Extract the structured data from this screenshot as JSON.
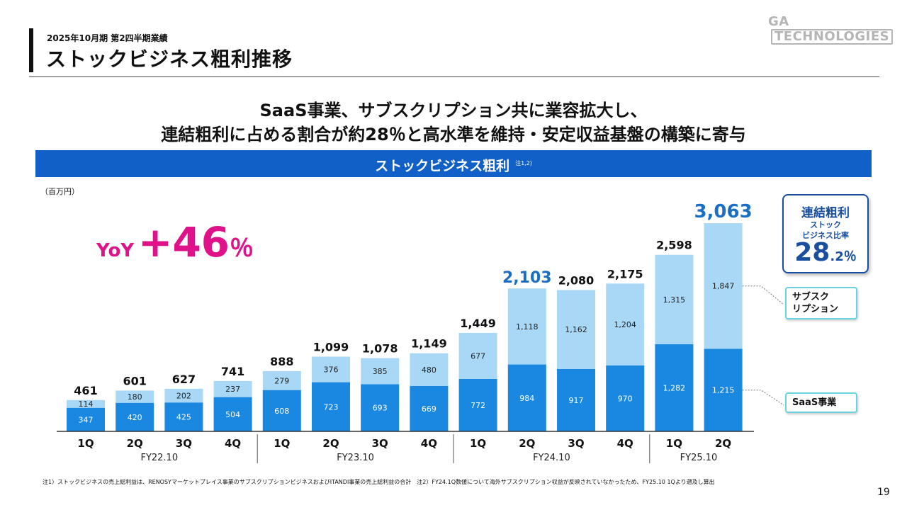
{
  "header": {
    "period": "2025年10月期 第2四半期業績",
    "title": "ストックビジネス粗利推移",
    "logo_a": "GA",
    "logo_b": "TECHNOLOGIES"
  },
  "headline": {
    "line1": "SaaS事業、サブスクリプション共に業容拡大し、",
    "line2": "連結粗利に占める割合が約28％と高水準を維持・安定収益基盤の構築に寄与"
  },
  "band": {
    "title": "ストックビジネス粗利",
    "note": "注1,2)"
  },
  "unit": "（百万円）",
  "yoy": {
    "prefix": "YoY",
    "value": "+46",
    "suffix": "％"
  },
  "callout": {
    "line1": "連結粗利",
    "line2": "ストック",
    "line3": "ビジネス比率",
    "value_int": "28",
    "value_dec": ".2％"
  },
  "legend": {
    "subscription": "サブスク\nリプション",
    "saas": "SaaS事業"
  },
  "footnote": "注1）ストックビジネスの売上総利益は、RENOSYマーケットプレイス事業のサブスクリプションビジネスおよびITANDI事業の売上総利益の合計　注2）FY24.1Q数値について海外サブスクリプション収益が反映されていなかったため、FY25.10 1Qより遡及し算出",
  "page_number": "19",
  "colors": {
    "saas": "#1a88e0",
    "subscription": "#a8d8f6",
    "highlight_total": "#1a6fc4",
    "band": "#1060c8",
    "yoy": "#e0128a"
  },
  "chart_data": {
    "type": "bar",
    "stacked": true,
    "categories": [
      "1Q",
      "2Q",
      "3Q",
      "4Q",
      "1Q",
      "2Q",
      "3Q",
      "4Q",
      "1Q",
      "2Q",
      "3Q",
      "4Q",
      "1Q",
      "2Q"
    ],
    "groups": [
      {
        "label": "FY22.10",
        "count": 4
      },
      {
        "label": "FY23.10",
        "count": 4
      },
      {
        "label": "FY24.10",
        "count": 4
      },
      {
        "label": "FY25.10",
        "count": 2
      }
    ],
    "series": [
      {
        "name": "SaaS事業",
        "values": [
          347,
          420,
          425,
          504,
          608,
          723,
          693,
          669,
          772,
          984,
          917,
          970,
          1282,
          1215
        ]
      },
      {
        "name": "サブスクリプション",
        "values": [
          114,
          180,
          202,
          237,
          279,
          376,
          385,
          480,
          677,
          1118,
          1162,
          1204,
          1315,
          1847
        ]
      }
    ],
    "totals": [
      "461",
      "601",
      "627",
      "741",
      "888",
      "1,099",
      "1,078",
      "1,149",
      "1,449",
      "2,103",
      "2,080",
      "2,175",
      "2,598",
      "3,063"
    ],
    "highlighted_totals": [
      9,
      13
    ],
    "ylim": [
      0,
      3100
    ]
  }
}
